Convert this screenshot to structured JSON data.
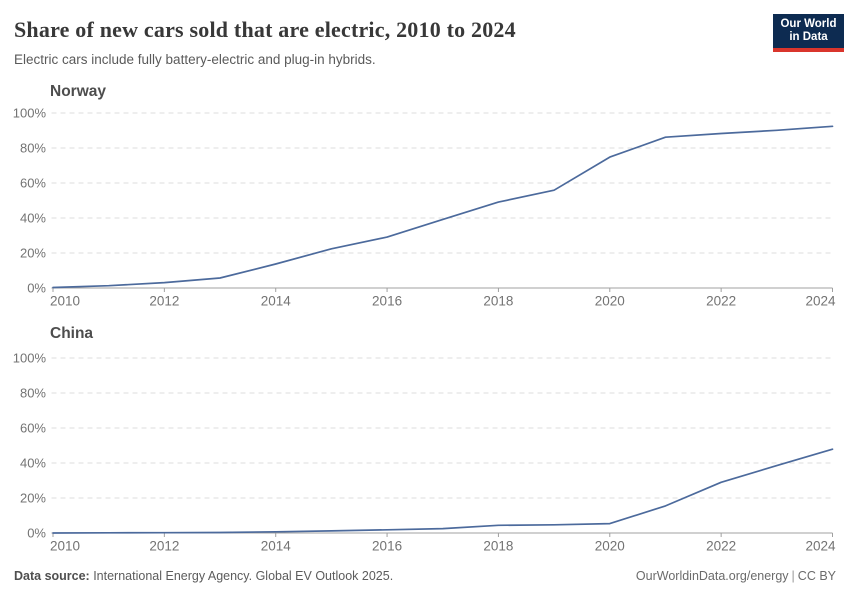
{
  "header": {
    "title": "Share of new cars sold that are electric, 2010 to 2024",
    "subtitle": "Electric cars include fully battery-electric and plug-in hybrids.",
    "logo": {
      "line1": "Our World",
      "line2": "in Data"
    }
  },
  "footer": {
    "source_label": "Data source:",
    "source_text": " International Energy Agency. Global EV Outlook 2025.",
    "link": "OurWorldinData.org/energy",
    "separator": "|",
    "license": "CC BY"
  },
  "colors": {
    "line": "#4c6a9c",
    "grid": "#dedede",
    "axis": "#a0a0a0",
    "tick_label": "#737373",
    "logo_bg": "#0d2b51",
    "logo_stripe": "#d9352c"
  },
  "chart_data": [
    {
      "type": "line",
      "title": "Norway",
      "unit": "%",
      "x": [
        2010,
        2011,
        2012,
        2013,
        2014,
        2015,
        2016,
        2017,
        2018,
        2019,
        2020,
        2021,
        2022,
        2023,
        2024
      ],
      "values": [
        0.3,
        1.3,
        3.1,
        5.7,
        13.7,
        22.4,
        29.1,
        39.2,
        49.1,
        55.9,
        74.8,
        86.2,
        88.3,
        90.1,
        92.4
      ],
      "ylim": [
        0,
        100
      ],
      "yticks": [
        0,
        20,
        40,
        60,
        80,
        100
      ],
      "ytick_suffix": "%",
      "xticks": [
        2010,
        2012,
        2014,
        2016,
        2018,
        2020,
        2022,
        2024
      ],
      "grid": "horizontal-dashed",
      "legend": "none"
    },
    {
      "type": "line",
      "title": "China",
      "unit": "%",
      "x": [
        2010,
        2011,
        2012,
        2013,
        2014,
        2015,
        2016,
        2017,
        2018,
        2019,
        2020,
        2021,
        2022,
        2023,
        2024
      ],
      "values": [
        0.0,
        0.1,
        0.2,
        0.3,
        0.7,
        1.2,
        1.8,
        2.5,
        4.4,
        4.7,
        5.4,
        15.5,
        29.0,
        38.5,
        47.9
      ],
      "ylim": [
        0,
        100
      ],
      "yticks": [
        0,
        20,
        40,
        60,
        80,
        100
      ],
      "ytick_suffix": "%",
      "xticks": [
        2010,
        2012,
        2014,
        2016,
        2018,
        2020,
        2022,
        2024
      ],
      "grid": "horizontal-dashed",
      "legend": "none"
    }
  ]
}
